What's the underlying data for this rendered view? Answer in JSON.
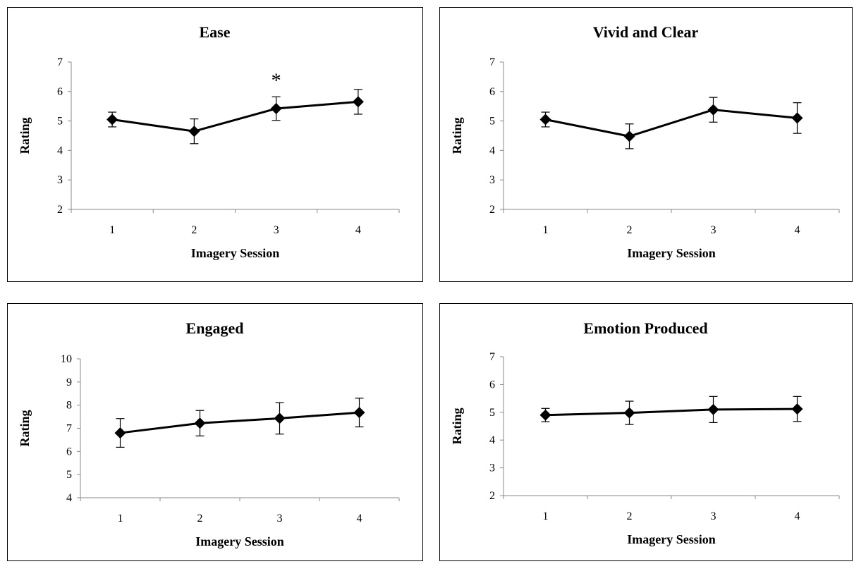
{
  "chart_data": [
    {
      "type": "line",
      "title": "Ease",
      "xlabel": "Imagery Session",
      "ylabel": "Rating",
      "categories": [
        "1",
        "2",
        "3",
        "4"
      ],
      "ylim": [
        2,
        7
      ],
      "yticks": [
        "2",
        "3",
        "4",
        "5",
        "6",
        "7"
      ],
      "grid": false,
      "series": [
        {
          "values": [
            5.05,
            4.65,
            5.42,
            5.65
          ],
          "error": [
            0.25,
            0.42,
            0.4,
            0.42
          ]
        }
      ],
      "annotations": [
        {
          "text": "*",
          "category": "3"
        }
      ]
    },
    {
      "type": "line",
      "title": "Vivid and Clear",
      "xlabel": "Imagery Session",
      "ylabel": "Rating",
      "categories": [
        "1",
        "2",
        "3",
        "4"
      ],
      "ylim": [
        2,
        7
      ],
      "yticks": [
        "2",
        "3",
        "4",
        "5",
        "6",
        "7"
      ],
      "grid": false,
      "series": [
        {
          "values": [
            5.05,
            4.48,
            5.38,
            5.1
          ],
          "error": [
            0.25,
            0.42,
            0.42,
            0.52
          ]
        }
      ],
      "annotations": []
    },
    {
      "type": "line",
      "title": "Engaged",
      "xlabel": "Imagery Session",
      "ylabel": "Rating",
      "categories": [
        "1",
        "2",
        "3",
        "4"
      ],
      "ylim": [
        4,
        10
      ],
      "yticks": [
        "4",
        "5",
        "6",
        "7",
        "8",
        "9",
        "10"
      ],
      "grid": false,
      "series": [
        {
          "values": [
            6.8,
            7.22,
            7.43,
            7.68
          ],
          "error": [
            0.62,
            0.55,
            0.68,
            0.62
          ]
        }
      ],
      "annotations": []
    },
    {
      "type": "line",
      "title": "Emotion Produced",
      "xlabel": "Imagery Session",
      "ylabel": "Rating",
      "categories": [
        "1",
        "2",
        "3",
        "4"
      ],
      "ylim": [
        2,
        7
      ],
      "yticks": [
        "2",
        "3",
        "4",
        "5",
        "6",
        "7"
      ],
      "grid": false,
      "series": [
        {
          "values": [
            4.9,
            4.98,
            5.1,
            5.12
          ],
          "error": [
            0.24,
            0.42,
            0.47,
            0.45
          ]
        }
      ],
      "annotations": []
    }
  ]
}
